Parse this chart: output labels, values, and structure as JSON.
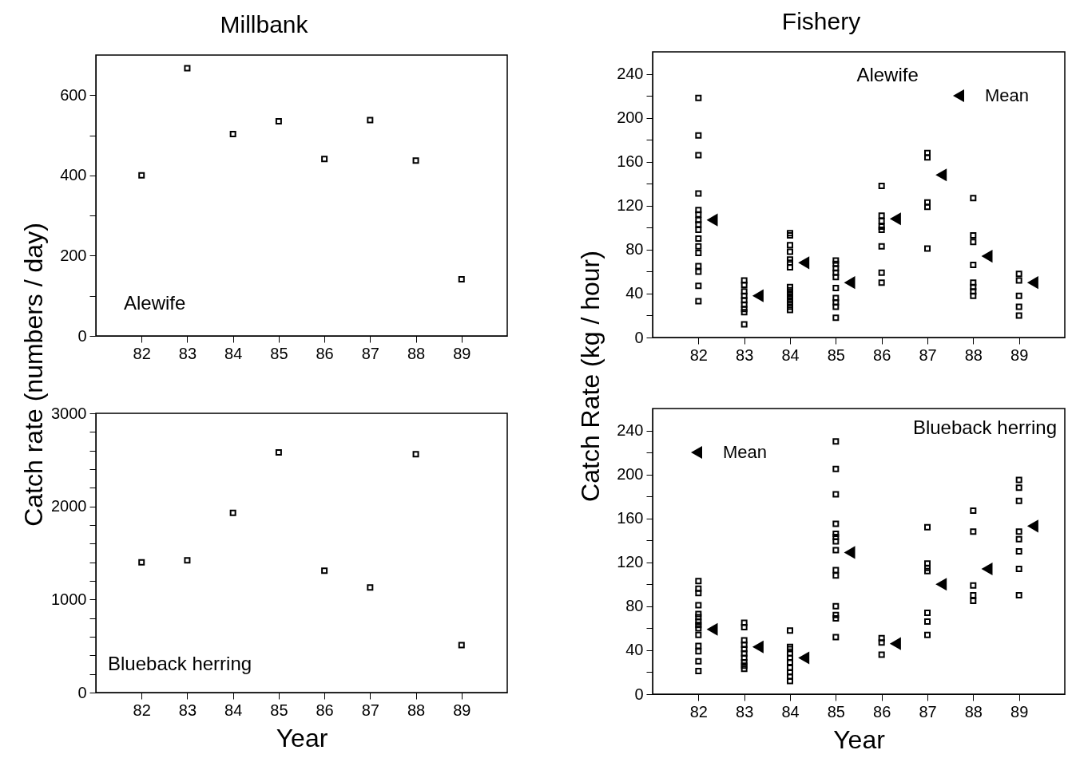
{
  "chart_data": [
    {
      "type": "scatter",
      "title": "Millbank",
      "ylabel": "Catch rate (numbers / day)",
      "annotations": [
        "Alewife"
      ],
      "marker": "square",
      "x": [
        82,
        83,
        84,
        85,
        86,
        87,
        88,
        89
      ],
      "series": [
        {
          "color": "#000000",
          "values": [
            400,
            667,
            503,
            535,
            441,
            538,
            437,
            141
          ]
        }
      ],
      "xlim": [
        81,
        90
      ],
      "xticks": [
        82,
        83,
        84,
        85,
        86,
        87,
        88,
        89
      ],
      "ylim": [
        0,
        700
      ],
      "yticks": [
        0,
        {
          "value": 100,
          "label": null
        },
        200,
        {
          "value": 300,
          "label": null
        },
        400,
        {
          "value": 500,
          "label": null
        },
        600
      ]
    },
    {
      "type": "scatter",
      "xlabel": "Year",
      "annotations": [
        "Blueback herring"
      ],
      "marker": "square",
      "x": [
        82,
        83,
        84,
        85,
        86,
        87,
        88,
        89
      ],
      "series": [
        {
          "color": "#000000",
          "values": [
            1400,
            1420,
            1930,
            2580,
            1310,
            1130,
            2560,
            510
          ]
        }
      ],
      "xlim": [
        81,
        90
      ],
      "xticks": [
        82,
        83,
        84,
        85,
        86,
        87,
        88,
        89
      ],
      "ylim": [
        0,
        3000
      ],
      "yticks": [
        0,
        {
          "value": 200,
          "label": null
        },
        {
          "value": 400,
          "label": null
        },
        {
          "value": 600,
          "label": null
        },
        {
          "value": 800,
          "label": null
        },
        1000,
        {
          "value": 1200,
          "label": null
        },
        {
          "value": 1400,
          "label": null
        },
        {
          "value": 1600,
          "label": null
        },
        {
          "value": 1800,
          "label": null
        },
        2000,
        {
          "value": 2200,
          "label": null
        },
        {
          "value": 2400,
          "label": null
        },
        {
          "value": 2600,
          "label": null
        },
        {
          "value": 2800,
          "label": null
        },
        3000
      ]
    },
    {
      "type": "scatter",
      "title": "Fishery",
      "ylabel": "Catch Rate (kg / hour)",
      "annotations": [
        "Alewife"
      ],
      "marker": "square",
      "legend": "top right",
      "series": [
        {
          "color": "#000000",
          "x": [
            82,
            82,
            82,
            82,
            82,
            82,
            82,
            82,
            82,
            82,
            82,
            82,
            82,
            82,
            82,
            82,
            83,
            83,
            83,
            83,
            83,
            83,
            83,
            83,
            83,
            84,
            84,
            84,
            84,
            84,
            84,
            84,
            84,
            84,
            84,
            84,
            84,
            84,
            84,
            84,
            85,
            85,
            85,
            85,
            85,
            85,
            85,
            85,
            85,
            85,
            86,
            86,
            86,
            86,
            86,
            86,
            86,
            86,
            87,
            87,
            87,
            87,
            87,
            88,
            88,
            88,
            88,
            88,
            88,
            88,
            88,
            89,
            89,
            89,
            89,
            89
          ],
          "values": [
            218,
            184,
            166,
            131,
            116,
            112,
            107,
            103,
            98,
            90,
            83,
            77,
            65,
            60,
            47,
            33,
            52,
            48,
            42,
            38,
            34,
            30,
            26,
            23,
            12,
            95,
            93,
            84,
            78,
            71,
            68,
            64,
            46,
            43,
            40,
            37,
            34,
            31,
            28,
            25,
            70,
            67,
            63,
            59,
            55,
            45,
            36,
            32,
            28,
            18,
            138,
            111,
            106,
            101,
            98,
            83,
            59,
            50,
            168,
            164,
            123,
            119,
            81,
            127,
            93,
            87,
            66,
            50,
            46,
            42,
            38,
            58,
            52,
            38,
            28,
            20
          ]
        },
        {
          "name": "Mean",
          "color": "#000000",
          "marker": "triangle",
          "x": [
            82.3,
            83.3,
            84.3,
            85.3,
            86.3,
            87.3,
            88.3,
            89.3
          ],
          "values": [
            107,
            38,
            68,
            50,
            108,
            148,
            74,
            50
          ]
        }
      ],
      "xlim": [
        81,
        90
      ],
      "xticks": [
        82,
        83,
        84,
        85,
        86,
        87,
        88,
        89
      ],
      "ylim": [
        0,
        260
      ],
      "yticks": [
        0,
        {
          "value": 20,
          "label": null
        },
        40,
        {
          "value": 60,
          "label": null
        },
        80,
        {
          "value": 100,
          "label": null
        },
        120,
        {
          "value": 140,
          "label": null
        },
        160,
        {
          "value": 180,
          "label": null
        },
        200,
        {
          "value": 220,
          "label": null
        },
        240
      ]
    },
    {
      "type": "scatter",
      "xlabel": "Year",
      "annotations": [
        "Blueback herring"
      ],
      "marker": "square",
      "legend": "top left",
      "series": [
        {
          "color": "#000000",
          "x": [
            82,
            82,
            82,
            82,
            82,
            82,
            82,
            82,
            82,
            82,
            82,
            82,
            82,
            82,
            83,
            83,
            83,
            83,
            83,
            83,
            83,
            83,
            83,
            83,
            84,
            84,
            84,
            84,
            84,
            84,
            84,
            84,
            84,
            84,
            85,
            85,
            85,
            85,
            85,
            85,
            85,
            85,
            85,
            85,
            85,
            85,
            85,
            85,
            86,
            86,
            86,
            87,
            87,
            87,
            87,
            87,
            87,
            87,
            88,
            88,
            88,
            88,
            88,
            89,
            89,
            89,
            89,
            89,
            89,
            89,
            89
          ],
          "values": [
            103,
            96,
            92,
            81,
            73,
            70,
            66,
            63,
            60,
            54,
            44,
            39,
            30,
            21,
            65,
            61,
            49,
            45,
            41,
            37,
            33,
            29,
            26,
            23,
            58,
            43,
            41,
            37,
            33,
            29,
            24,
            20,
            16,
            12,
            230,
            205,
            182,
            155,
            146,
            143,
            139,
            131,
            113,
            108,
            80,
            72,
            69,
            52,
            51,
            47,
            36,
            152,
            119,
            115,
            112,
            74,
            66,
            54,
            167,
            148,
            99,
            90,
            85,
            195,
            188,
            176,
            148,
            141,
            130,
            114,
            90
          ]
        },
        {
          "name": "Mean",
          "color": "#000000",
          "marker": "triangle",
          "x": [
            82.3,
            83.3,
            84.3,
            85.3,
            86.3,
            87.3,
            88.3,
            89.3
          ],
          "values": [
            59,
            43,
            33,
            129,
            46,
            100,
            114,
            153
          ]
        }
      ],
      "xlim": [
        81,
        90
      ],
      "xticks": [
        82,
        83,
        84,
        85,
        86,
        87,
        88,
        89
      ],
      "ylim": [
        0,
        260
      ],
      "yticks": [
        0,
        {
          "value": 20,
          "label": null
        },
        40,
        {
          "value": 60,
          "label": null
        },
        80,
        {
          "value": 100,
          "label": null
        },
        120,
        {
          "value": 140,
          "label": null
        },
        160,
        {
          "value": 180,
          "label": null
        },
        200,
        {
          "value": 220,
          "label": null
        },
        240
      ]
    }
  ]
}
